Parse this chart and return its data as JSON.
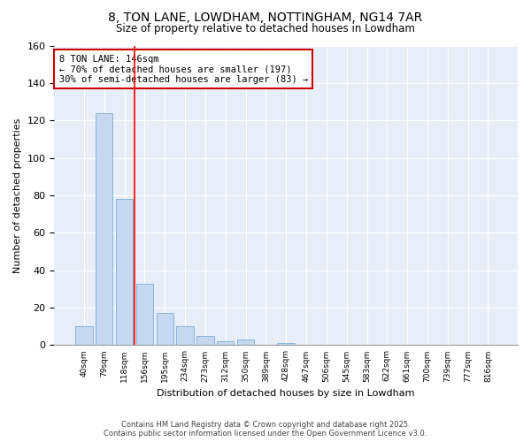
{
  "title": "8, TON LANE, LOWDHAM, NOTTINGHAM, NG14 7AR",
  "subtitle": "Size of property relative to detached houses in Lowdham",
  "xlabel": "Distribution of detached houses by size in Lowdham",
  "ylabel": "Number of detached properties",
  "categories": [
    "40sqm",
    "79sqm",
    "118sqm",
    "156sqm",
    "195sqm",
    "234sqm",
    "273sqm",
    "312sqm",
    "350sqm",
    "389sqm",
    "428sqm",
    "467sqm",
    "506sqm",
    "545sqm",
    "583sqm",
    "622sqm",
    "661sqm",
    "700sqm",
    "739sqm",
    "777sqm",
    "816sqm"
  ],
  "values": [
    10,
    124,
    78,
    33,
    17,
    10,
    5,
    2,
    3,
    0,
    1,
    0,
    0,
    0,
    0,
    0,
    0,
    0,
    0,
    0,
    0
  ],
  "bar_color": "#c5d8ef",
  "bar_edge_color": "#7aadd4",
  "red_line_x": 2.5,
  "annotation_text": "8 TON LANE: 146sqm\n← 70% of detached houses are smaller (197)\n30% of semi-detached houses are larger (83) →",
  "annotation_box_color": "#ffffff",
  "annotation_box_edge": "#cc0000",
  "ylim": [
    0,
    160
  ],
  "yticks": [
    0,
    20,
    40,
    60,
    80,
    100,
    120,
    140,
    160
  ],
  "background_color": "#e8eef8",
  "grid_color": "#ffffff",
  "fig_background": "#ffffff",
  "footer_line1": "Contains HM Land Registry data © Crown copyright and database right 2025.",
  "footer_line2": "Contains public sector information licensed under the Open Government Licence v3.0."
}
